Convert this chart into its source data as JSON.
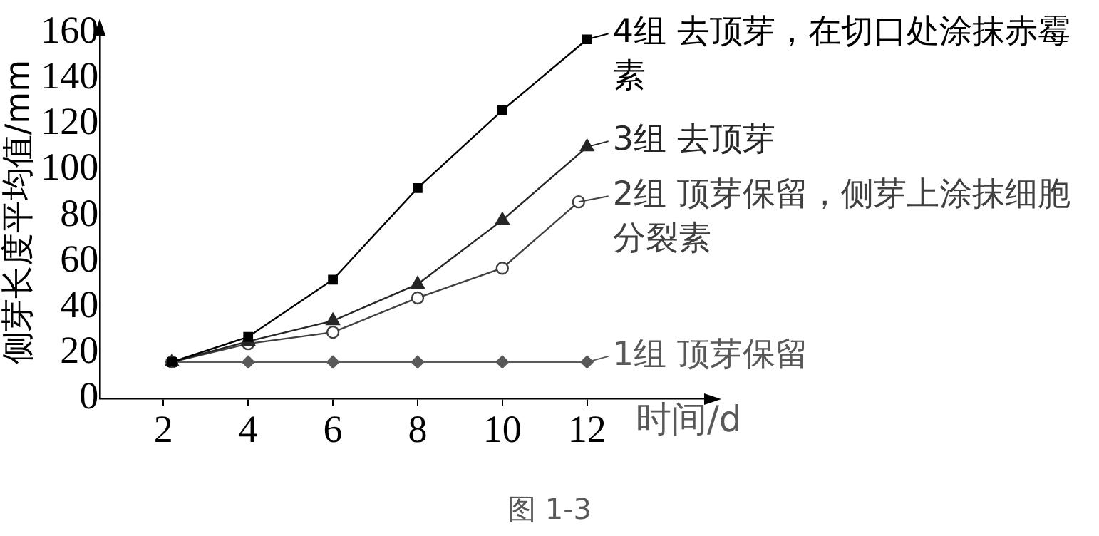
{
  "chart_data": {
    "type": "line",
    "xlabel": "时间/d",
    "ylabel": "侧芽长度平均值/mm",
    "xlim": [
      0.5,
      15
    ],
    "xticks": [
      2,
      4,
      6,
      8,
      10,
      12
    ],
    "ylim": [
      0,
      163
    ],
    "yticks": [
      0,
      20,
      40,
      60,
      80,
      100,
      120,
      140,
      160
    ],
    "grid": false,
    "legend": "right",
    "annotations": [
      "图 1-3"
    ],
    "series": [
      {
        "name": "4组 去顶芽，在切口处涂抹赤霉素",
        "color": "#000000",
        "marker": "square",
        "x": [
          2.2,
          4,
          6,
          8,
          10,
          12
        ],
        "values": [
          16,
          27,
          52,
          92,
          126,
          157
        ]
      },
      {
        "name": "3组 去顶芽",
        "color": "#262626",
        "marker": "triangle",
        "x": [
          2.2,
          4,
          6,
          8,
          10,
          12
        ],
        "values": [
          16,
          25,
          34,
          50,
          78,
          110
        ]
      },
      {
        "name": "2组 顶芽保留，侧芽上涂抹细胞分裂素",
        "color": "#404040",
        "marker": "circle",
        "x": [
          2.2,
          4,
          6,
          8,
          10,
          11.8
        ],
        "values": [
          16,
          24,
          29,
          44,
          57,
          86
        ]
      },
      {
        "name": "1组 顶芽保留",
        "color": "#595959",
        "marker": "diamond",
        "x": [
          2.2,
          4,
          6,
          8,
          10,
          12
        ],
        "values": [
          16,
          16,
          16,
          16,
          16,
          16
        ]
      }
    ]
  }
}
